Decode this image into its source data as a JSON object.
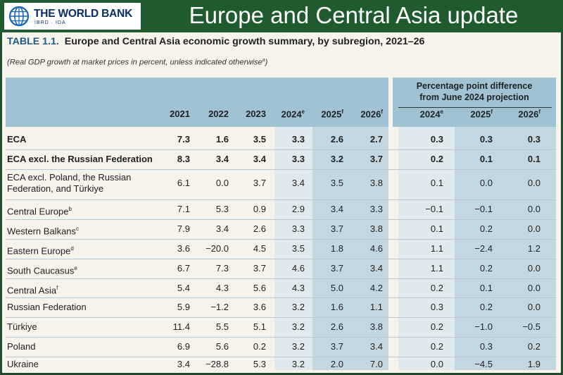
{
  "banner": {
    "logo_name": "THE WORLD BANK",
    "logo_sub": "IBRD · IDA",
    "title": "Europe and Central Asia update"
  },
  "table": {
    "label": "TABLE 1.1.",
    "title": "Europe and Central Asia economic growth summary, by subregion, 2021–26",
    "subtitle": "(Real GDP growth at market prices in percent, unless indicated otherwise",
    "subtitle_note": "a",
    "subtitle_close": ")",
    "diff_header_line1": "Percentage point difference",
    "diff_header_line2": "from June 2024 projection",
    "columns": [
      {
        "year": "2021",
        "sup": ""
      },
      {
        "year": "2022",
        "sup": ""
      },
      {
        "year": "2023",
        "sup": ""
      },
      {
        "year": "2024",
        "sup": "e"
      },
      {
        "year": "2025",
        "sup": "f"
      },
      {
        "year": "2026",
        "sup": "f"
      }
    ],
    "diff_columns": [
      {
        "year": "2024",
        "sup": "e"
      },
      {
        "year": "2025",
        "sup": "f"
      },
      {
        "year": "2026",
        "sup": "f"
      }
    ],
    "rows": [
      {
        "label": "ECA",
        "label2": "",
        "sup": "",
        "bold": true,
        "values": [
          "7.3",
          "1.6",
          "3.5",
          "3.3",
          "2.6",
          "2.7"
        ],
        "diffs": [
          "0.3",
          "0.3",
          "0.3"
        ]
      },
      {
        "label": "ECA excl. the Russian Federation",
        "label2": "",
        "sup": "",
        "bold": true,
        "values": [
          "8.3",
          "3.4",
          "3.4",
          "3.3",
          "3.2",
          "3.7"
        ],
        "diffs": [
          "0.2",
          "0.1",
          "0.1"
        ]
      },
      {
        "label": "ECA excl. Poland, the Russian",
        "label2": "Federation, and Türkiye",
        "sup": "",
        "bold": false,
        "values": [
          "6.1",
          "0.0",
          "3.7",
          "3.4",
          "3.5",
          "3.8"
        ],
        "diffs": [
          "0.1",
          "0.0",
          "0.0"
        ]
      },
      {
        "label": "Central Europe",
        "label2": "",
        "sup": "b",
        "bold": false,
        "values": [
          "7.1",
          "5.3",
          "0.9",
          "2.9",
          "3.4",
          "3.3"
        ],
        "diffs": [
          "−0.1",
          "−0.1",
          "0.0"
        ]
      },
      {
        "label": "Western Balkans",
        "label2": "",
        "sup": "c",
        "bold": false,
        "values": [
          "7.9",
          "3.4",
          "2.6",
          "3.3",
          "3.7",
          "3.8"
        ],
        "diffs": [
          "0.1",
          "0.2",
          "0.0"
        ]
      },
      {
        "label": "Eastern Europe",
        "label2": "",
        "sup": "d",
        "bold": false,
        "values": [
          "3.6",
          "−20.0",
          "4.5",
          "3.5",
          "1.8",
          "4.6"
        ],
        "diffs": [
          "1.1",
          "−2.4",
          "1.2"
        ]
      },
      {
        "label": "South Caucasus",
        "label2": "",
        "sup": "e",
        "bold": false,
        "values": [
          "6.7",
          "7.3",
          "3.7",
          "4.6",
          "3.7",
          "3.4"
        ],
        "diffs": [
          "1.1",
          "0.2",
          "0.0"
        ]
      },
      {
        "label": "Central Asia",
        "label2": "",
        "sup": "f",
        "bold": false,
        "values": [
          "5.4",
          "4.3",
          "5.6",
          "4.3",
          "5.0",
          "4.2"
        ],
        "diffs": [
          "0.2",
          "0.1",
          "0.0"
        ]
      },
      {
        "label": "Russian Federation",
        "label2": "",
        "sup": "",
        "bold": false,
        "values": [
          "5.9",
          "−1.2",
          "3.6",
          "3.2",
          "1.6",
          "1.1"
        ],
        "diffs": [
          "0.3",
          "0.2",
          "0.0"
        ]
      },
      {
        "label": "Türkiye",
        "label2": "",
        "sup": "",
        "bold": false,
        "values": [
          "11.4",
          "5.5",
          "5.1",
          "3.2",
          "2.6",
          "3.8"
        ],
        "diffs": [
          "0.2",
          "−1.0",
          "−0.5"
        ]
      },
      {
        "label": "Poland",
        "label2": "",
        "sup": "",
        "bold": false,
        "values": [
          "6.9",
          "5.6",
          "0.2",
          "3.2",
          "3.7",
          "3.4"
        ],
        "diffs": [
          "0.2",
          "0.3",
          "0.2"
        ]
      },
      {
        "label": "Ukraine",
        "label2": "",
        "sup": "",
        "bold": false,
        "values": [
          "3.4",
          "−28.8",
          "5.3",
          "3.2",
          "2.0",
          "7.0"
        ],
        "diffs": [
          "0.0",
          "−4.5",
          "1.9"
        ]
      }
    ]
  }
}
